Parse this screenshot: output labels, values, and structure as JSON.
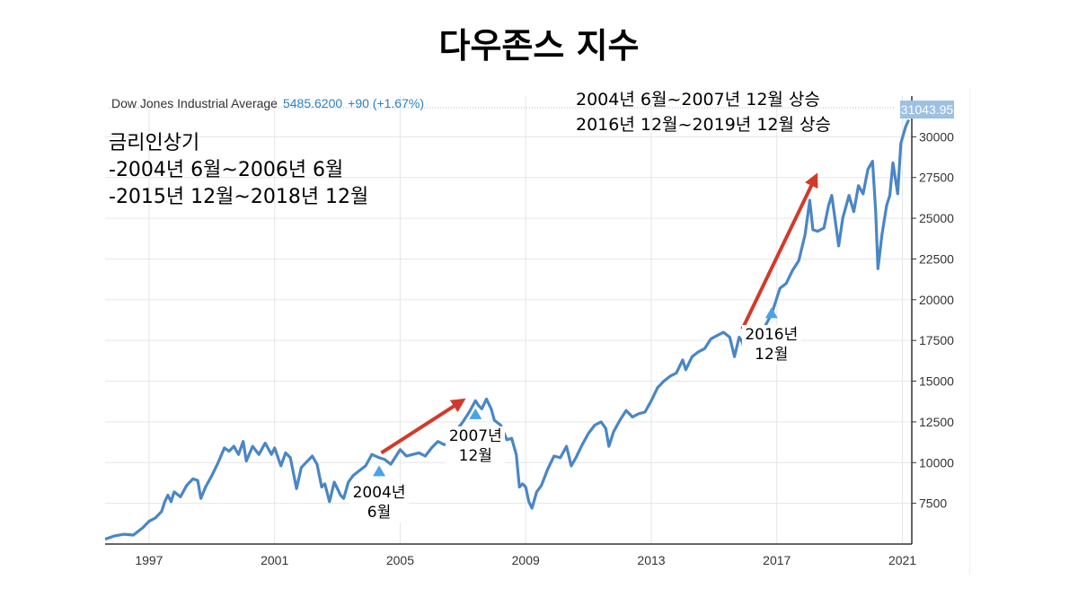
{
  "page_title": "다우존스 지수",
  "legend": {
    "name": "Dow Jones Industrial Average",
    "value": "5485.6200",
    "change": "+90 (+1.67%)"
  },
  "last_value_label": "31043.95",
  "notes": {
    "left": [
      "금리인상기",
      "-2004년 6월~2006년 6월",
      "-2015년 12월~2018년 12월"
    ],
    "right": [
      "2004년 6월~2007년 12월 상승",
      "2016년 12월~2019년 12월 상승"
    ]
  },
  "annotations": [
    {
      "lines": [
        "2004년",
        "6월"
      ],
      "year": 2004.33,
      "value": 9500
    },
    {
      "lines": [
        "2007년",
        "12월"
      ],
      "year": 2007.4,
      "value": 13000
    },
    {
      "lines": [
        "2016년",
        "12월"
      ],
      "year": 2016.83,
      "value": 19200
    }
  ],
  "colors": {
    "line": "#4a86c5",
    "arrow": "#d13a2a",
    "marker": "#4aa3e8",
    "badge": "#9dc1e3",
    "grid": "#e6e6e6"
  },
  "chart_data": {
    "type": "line",
    "title": "다우존스 지수",
    "series_name": "Dow Jones Industrial Average",
    "xlabel": "",
    "ylabel": "",
    "xlim": [
      1995.6,
      2021.3
    ],
    "ylim": [
      5000,
      32500
    ],
    "x_ticks": [
      1997,
      2001,
      2005,
      2009,
      2013,
      2017,
      2021
    ],
    "y_ticks": [
      7500,
      10000,
      12500,
      15000,
      17500,
      20000,
      22500,
      25000,
      27500,
      30000
    ],
    "points": [
      [
        1995.6,
        5300
      ],
      [
        1995.9,
        5500
      ],
      [
        1996.2,
        5600
      ],
      [
        1996.5,
        5550
      ],
      [
        1996.8,
        6000
      ],
      [
        1997.0,
        6400
      ],
      [
        1997.2,
        6600
      ],
      [
        1997.4,
        7000
      ],
      [
        1997.5,
        7600
      ],
      [
        1997.6,
        8000
      ],
      [
        1997.7,
        7600
      ],
      [
        1997.8,
        8200
      ],
      [
        1998.0,
        7900
      ],
      [
        1998.2,
        8600
      ],
      [
        1998.4,
        9000
      ],
      [
        1998.55,
        8900
      ],
      [
        1998.65,
        7800
      ],
      [
        1998.8,
        8500
      ],
      [
        1999.0,
        9200
      ],
      [
        1999.2,
        10000
      ],
      [
        1999.4,
        10900
      ],
      [
        1999.55,
        10700
      ],
      [
        1999.7,
        11000
      ],
      [
        1999.85,
        10500
      ],
      [
        2000.0,
        11300
      ],
      [
        2000.1,
        10100
      ],
      [
        2000.3,
        11000
      ],
      [
        2000.5,
        10500
      ],
      [
        2000.7,
        11200
      ],
      [
        2000.9,
        10500
      ],
      [
        2001.0,
        10900
      ],
      [
        2001.2,
        9800
      ],
      [
        2001.35,
        10600
      ],
      [
        2001.5,
        10300
      ],
      [
        2001.7,
        8400
      ],
      [
        2001.85,
        9700
      ],
      [
        2002.0,
        10000
      ],
      [
        2002.2,
        10400
      ],
      [
        2002.35,
        9900
      ],
      [
        2002.5,
        8500
      ],
      [
        2002.6,
        8700
      ],
      [
        2002.75,
        7600
      ],
      [
        2002.9,
        8800
      ],
      [
        2003.1,
        8000
      ],
      [
        2003.2,
        7800
      ],
      [
        2003.35,
        8800
      ],
      [
        2003.5,
        9200
      ],
      [
        2003.7,
        9500
      ],
      [
        2003.9,
        9800
      ],
      [
        2004.1,
        10500
      ],
      [
        2004.33,
        10300
      ],
      [
        2004.5,
        10200
      ],
      [
        2004.7,
        9900
      ],
      [
        2004.9,
        10500
      ],
      [
        2005.0,
        10800
      ],
      [
        2005.2,
        10400
      ],
      [
        2005.4,
        10500
      ],
      [
        2005.6,
        10600
      ],
      [
        2005.8,
        10400
      ],
      [
        2006.0,
        10900
      ],
      [
        2006.2,
        11300
      ],
      [
        2006.4,
        11100
      ],
      [
        2006.6,
        11200
      ],
      [
        2006.8,
        12000
      ],
      [
        2007.0,
        12500
      ],
      [
        2007.2,
        13100
      ],
      [
        2007.4,
        13800
      ],
      [
        2007.5,
        13500
      ],
      [
        2007.6,
        13300
      ],
      [
        2007.75,
        13900
      ],
      [
        2007.9,
        13300
      ],
      [
        2008.0,
        12600
      ],
      [
        2008.2,
        12300
      ],
      [
        2008.4,
        11400
      ],
      [
        2008.55,
        11500
      ],
      [
        2008.7,
        10500
      ],
      [
        2008.8,
        8500
      ],
      [
        2008.9,
        8700
      ],
      [
        2009.0,
        8500
      ],
      [
        2009.1,
        7600
      ],
      [
        2009.2,
        7200
      ],
      [
        2009.35,
        8200
      ],
      [
        2009.5,
        8600
      ],
      [
        2009.7,
        9600
      ],
      [
        2009.9,
        10400
      ],
      [
        2010.1,
        10300
      ],
      [
        2010.3,
        11000
      ],
      [
        2010.45,
        9800
      ],
      [
        2010.6,
        10300
      ],
      [
        2010.8,
        11100
      ],
      [
        2011.0,
        11800
      ],
      [
        2011.2,
        12300
      ],
      [
        2011.4,
        12500
      ],
      [
        2011.55,
        12100
      ],
      [
        2011.65,
        11000
      ],
      [
        2011.8,
        11900
      ],
      [
        2012.0,
        12600
      ],
      [
        2012.2,
        13200
      ],
      [
        2012.4,
        12800
      ],
      [
        2012.6,
        13000
      ],
      [
        2012.8,
        13100
      ],
      [
        2013.0,
        13800
      ],
      [
        2013.2,
        14600
      ],
      [
        2013.4,
        15000
      ],
      [
        2013.6,
        15300
      ],
      [
        2013.8,
        15500
      ],
      [
        2014.0,
        16300
      ],
      [
        2014.1,
        15700
      ],
      [
        2014.3,
        16500
      ],
      [
        2014.5,
        16800
      ],
      [
        2014.7,
        17000
      ],
      [
        2014.9,
        17600
      ],
      [
        2015.1,
        17800
      ],
      [
        2015.3,
        18000
      ],
      [
        2015.5,
        17700
      ],
      [
        2015.65,
        16500
      ],
      [
        2015.8,
        17700
      ],
      [
        2015.9,
        17400
      ],
      [
        2016.05,
        16400
      ],
      [
        2016.2,
        17700
      ],
      [
        2016.4,
        17900
      ],
      [
        2016.6,
        18300
      ],
      [
        2016.83,
        19100
      ],
      [
        2016.95,
        19800
      ],
      [
        2017.1,
        20700
      ],
      [
        2017.3,
        21000
      ],
      [
        2017.5,
        21800
      ],
      [
        2017.7,
        22400
      ],
      [
        2017.9,
        24000
      ],
      [
        2018.05,
        26100
      ],
      [
        2018.15,
        24300
      ],
      [
        2018.3,
        24200
      ],
      [
        2018.5,
        24400
      ],
      [
        2018.65,
        25800
      ],
      [
        2018.75,
        26400
      ],
      [
        2018.85,
        25000
      ],
      [
        2018.97,
        23300
      ],
      [
        2019.1,
        25000
      ],
      [
        2019.3,
        26400
      ],
      [
        2019.45,
        25400
      ],
      [
        2019.6,
        27000
      ],
      [
        2019.75,
        26500
      ],
      [
        2019.9,
        28000
      ],
      [
        2020.05,
        28500
      ],
      [
        2020.15,
        25400
      ],
      [
        2020.22,
        21900
      ],
      [
        2020.35,
        24000
      ],
      [
        2020.5,
        25800
      ],
      [
        2020.6,
        26400
      ],
      [
        2020.7,
        28400
      ],
      [
        2020.85,
        26500
      ],
      [
        2020.95,
        29600
      ],
      [
        2021.1,
        30600
      ],
      [
        2021.2,
        31040
      ]
    ]
  }
}
